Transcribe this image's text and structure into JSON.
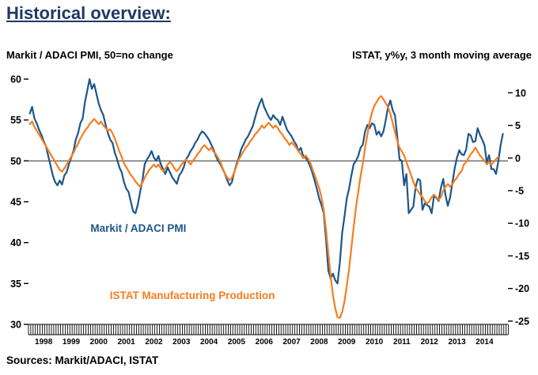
{
  "page": {
    "title": "Historical overview:",
    "source": "Sources: Markit/ADACI, ISTAT"
  },
  "chart_data": {
    "type": "line",
    "title": "Historical overview:",
    "left_axis_title": "Markit / ADACI PMI, 50=no change",
    "right_axis_title": "ISTAT, y%y, 3 month moving average",
    "xlim": [
      1997.95,
      2015.35
    ],
    "left_ylim": [
      30,
      60
    ],
    "right_ylim": [
      -25.5,
      12.1
    ],
    "left_ticks": [
      60,
      55,
      50,
      45,
      40,
      35,
      30
    ],
    "right_ticks": [
      10,
      5,
      0,
      -5,
      -10,
      -15,
      -20,
      -25
    ],
    "x_tick_years": [
      1998,
      1999,
      2000,
      2001,
      2002,
      2003,
      2004,
      2005,
      2006,
      2007,
      2008,
      2009,
      2010,
      2011,
      2012,
      2013,
      2014
    ],
    "x_minor_ticks": "monthly",
    "grid": "off",
    "legend": "in-plot text annotations",
    "reference_line_left": 50,
    "colors": {
      "pmi_blue": "#1d5689",
      "istat_orange": "#f57e20",
      "title_navy": "#1f3864"
    },
    "series": [
      {
        "id": "pmi-line",
        "name": "Markit / ADACI PMI",
        "axis": "left",
        "color": "#1d5689",
        "start_x": 1998.0,
        "points_per_year": 12,
        "values": [
          55.8,
          56.6,
          55.2,
          54.6,
          53.8,
          53.2,
          52.4,
          51.8,
          50.6,
          49.4,
          48.2,
          47.4,
          47.0,
          47.6,
          47.1,
          48.2,
          48.6,
          49.6,
          50.4,
          51.2,
          52.6,
          53.4,
          54.6,
          55.2,
          57.2,
          58.6,
          60.0,
          58.8,
          59.4,
          58.2,
          57.0,
          56.2,
          55.6,
          54.4,
          53.4,
          52.6,
          52.2,
          51.0,
          50.2,
          49.2,
          48.6,
          47.4,
          46.6,
          46.2,
          45.0,
          43.8,
          43.6,
          44.6,
          46.2,
          47.6,
          49.6,
          50.2,
          50.6,
          51.2,
          50.4,
          50.0,
          50.6,
          49.6,
          49.0,
          48.4,
          49.2,
          48.6,
          48.0,
          47.6,
          47.2,
          48.2,
          48.6,
          49.2,
          50.2,
          50.6,
          51.2,
          51.6,
          52.2,
          52.6,
          53.2,
          53.6,
          53.4,
          53.0,
          52.6,
          52.0,
          51.4,
          50.6,
          50.0,
          49.6,
          49.0,
          48.4,
          47.6,
          47.0,
          47.4,
          48.6,
          49.6,
          50.4,
          51.4,
          52.0,
          52.6,
          53.0,
          53.6,
          54.2,
          55.2,
          56.2,
          57.0,
          57.6,
          56.6,
          56.0,
          55.4,
          55.0,
          55.6,
          55.2,
          55.0,
          54.4,
          55.4,
          54.6,
          53.8,
          53.4,
          53.0,
          52.4,
          52.0,
          51.2,
          51.6,
          50.6,
          50.4,
          50.0,
          49.4,
          48.6,
          47.6,
          46.6,
          45.4,
          44.6,
          43.6,
          40.4,
          36.6,
          35.6,
          36.2,
          35.4,
          35.0,
          37.6,
          41.2,
          43.2,
          45.4,
          46.6,
          48.2,
          49.6,
          50.0,
          50.6,
          51.6,
          52.0,
          53.6,
          54.4,
          54.0,
          54.6,
          54.4,
          53.2,
          53.6,
          53.0,
          53.6,
          55.0,
          56.6,
          57.4,
          56.2,
          55.6,
          53.0,
          50.2,
          50.0,
          47.0,
          48.4,
          43.6,
          44.0,
          44.4,
          46.8,
          47.8,
          47.6,
          44.0,
          44.8,
          44.6,
          44.4,
          43.6,
          45.7,
          45.5,
          45.1,
          46.7,
          47.8,
          45.8,
          44.5,
          45.5,
          47.3,
          49.1,
          50.4,
          51.3,
          50.8,
          50.7,
          51.4,
          53.3,
          53.1,
          52.3,
          52.4,
          54.0,
          53.2,
          52.6,
          51.9,
          49.8,
          50.7,
          49.0,
          49.0,
          48.4,
          49.9,
          51.9,
          53.3
        ]
      },
      {
        "id": "istat-line",
        "name": "ISTAT Manufacturing Production",
        "axis": "right",
        "color": "#f57e20",
        "start_x": 1998.0,
        "points_per_year": 12,
        "values": [
          5.2,
          5.6,
          4.8,
          4.2,
          3.6,
          3.0,
          2.4,
          1.8,
          1.2,
          0.6,
          0.0,
          -0.6,
          -1.2,
          -1.8,
          -2.1,
          -1.6,
          -1.0,
          -0.4,
          0.2,
          0.8,
          1.6,
          2.2,
          3.0,
          3.6,
          4.2,
          4.6,
          5.2,
          5.6,
          6.0,
          5.6,
          5.2,
          5.6,
          5.0,
          4.6,
          4.2,
          4.4,
          3.8,
          3.0,
          2.0,
          1.0,
          0.2,
          -0.8,
          -1.4,
          -2.0,
          -2.6,
          -3.0,
          -3.6,
          -4.0,
          -4.4,
          -3.8,
          -3.0,
          -2.4,
          -1.8,
          -1.4,
          -1.0,
          -1.4,
          -1.0,
          -1.6,
          -2.0,
          -1.6,
          -1.0,
          -0.6,
          -1.0,
          -1.6,
          -2.0,
          -1.6,
          -1.0,
          -0.6,
          -0.2,
          -0.6,
          -1.0,
          -0.4,
          0.0,
          0.6,
          1.0,
          1.6,
          2.0,
          1.6,
          1.2,
          1.6,
          1.0,
          0.6,
          0.0,
          -0.6,
          -1.6,
          -2.4,
          -3.0,
          -3.4,
          -3.0,
          -2.2,
          -1.2,
          -0.2,
          0.4,
          1.0,
          1.6,
          2.0,
          2.6,
          3.0,
          3.6,
          4.0,
          4.4,
          5.0,
          4.6,
          5.0,
          5.4,
          5.0,
          4.6,
          5.0,
          4.6,
          4.0,
          3.6,
          3.0,
          2.6,
          2.0,
          2.4,
          2.0,
          1.6,
          1.0,
          0.6,
          0.0,
          0.4,
          0.0,
          -0.6,
          -1.6,
          -2.6,
          -3.6,
          -4.6,
          -6.0,
          -8.0,
          -11.0,
          -14.6,
          -18.0,
          -21.0,
          -23.0,
          -24.4,
          -24.5,
          -23.6,
          -22.0,
          -19.6,
          -17.0,
          -13.8,
          -10.6,
          -7.6,
          -5.2,
          -2.8,
          -0.8,
          1.6,
          3.6,
          5.6,
          7.0,
          8.0,
          8.6,
          9.2,
          9.5,
          9.0,
          8.4,
          7.8,
          6.8,
          5.4,
          4.0,
          2.6,
          1.6,
          1.0,
          0.4,
          -0.6,
          -1.6,
          -2.6,
          -3.6,
          -4.6,
          -5.0,
          -5.6,
          -6.0,
          -6.6,
          -7.0,
          -6.6,
          -6.0,
          -5.6,
          -6.0,
          -6.4,
          -6.0,
          -5.0,
          -4.4,
          -4.0,
          -4.4,
          -4.0,
          -3.4,
          -3.0,
          -2.4,
          -2.0,
          -1.0,
          -0.6,
          0.0,
          0.6,
          1.0,
          1.6,
          1.0,
          0.4,
          0.0,
          -0.4,
          -1.0,
          -0.6,
          -1.0,
          -0.6,
          -0.2,
          0.2
        ]
      }
    ],
    "annotations": [
      {
        "id": "pmi-label",
        "text": "Markit / ADACI PMI",
        "x": 2000.2,
        "left_y": 41.3,
        "color": "#1d5689"
      },
      {
        "id": "istat-label",
        "text": "ISTAT Manufacturing Production",
        "x": 2000.9,
        "left_y": 33.1,
        "color": "#f57e20"
      }
    ]
  }
}
